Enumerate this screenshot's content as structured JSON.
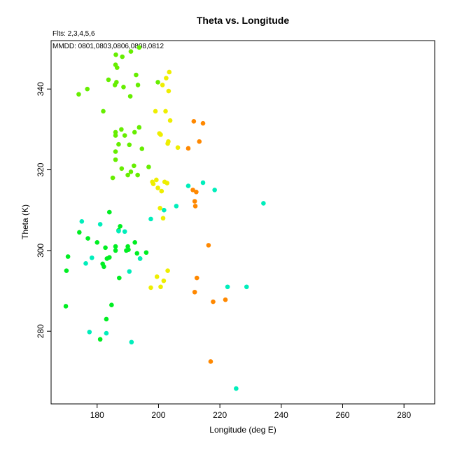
{
  "chart_data": {
    "type": "scatter",
    "title": "Theta vs. Longitude",
    "annotations": {
      "flts": "Flts: 2,3,4,5,6",
      "mmdd": "MMDD: 0801,0803,0806,0808,0812"
    },
    "xlabel": "Longitude (deg E)",
    "ylabel": "Theta (K)",
    "xlim": [
      165,
      290
    ],
    "ylim": [
      262,
      352
    ],
    "xticks": [
      180,
      200,
      220,
      240,
      260,
      280
    ],
    "yticks": [
      280,
      300,
      320,
      340
    ],
    "grid": false,
    "colors": {
      "green": "#00ee22",
      "lime": "#66ee00",
      "yellow": "#eeee00",
      "orange": "#ff8800",
      "cyan": "#00eebb"
    },
    "series": [
      {
        "color_key": "green",
        "points": [
          [
            169.8,
            286.2
          ],
          [
            170.0,
            295.0
          ],
          [
            170.5,
            298.5
          ],
          [
            174.2,
            304.5
          ],
          [
            177.0,
            303.0
          ],
          [
            180.0,
            302.0
          ],
          [
            181.0,
            278.0
          ],
          [
            181.8,
            296.7
          ],
          [
            182.2,
            296.0
          ],
          [
            182.7,
            300.7
          ],
          [
            183.0,
            283.0
          ],
          [
            183.2,
            298.0
          ],
          [
            184.0,
            298.3
          ],
          [
            184.0,
            309.5
          ],
          [
            184.7,
            286.5
          ],
          [
            186.0,
            300.0
          ],
          [
            186.0,
            301.0
          ],
          [
            187.0,
            305.0
          ],
          [
            187.2,
            293.2
          ],
          [
            187.5,
            306.0
          ],
          [
            189.5,
            300.0
          ],
          [
            190.0,
            301.0
          ],
          [
            190.2,
            300.2
          ],
          [
            192.3,
            302.0
          ],
          [
            193.0,
            299.3
          ],
          [
            194.0,
            298.0
          ],
          [
            196.0,
            299.5
          ]
        ]
      },
      {
        "color_key": "lime",
        "points": [
          [
            174.0,
            338.7
          ],
          [
            176.8,
            340.0
          ],
          [
            182.0,
            334.5
          ],
          [
            183.7,
            342.3
          ],
          [
            185.1,
            318.0
          ],
          [
            185.8,
            341.0
          ],
          [
            186.0,
            324.5
          ],
          [
            186.0,
            322.5
          ],
          [
            186.0,
            328.5
          ],
          [
            186.0,
            329.3
          ],
          [
            186.0,
            346.0
          ],
          [
            186.1,
            348.5
          ],
          [
            186.3,
            341.7
          ],
          [
            186.5,
            345.3
          ],
          [
            187.0,
            326.3
          ],
          [
            187.9,
            330.0
          ],
          [
            188.0,
            320.3
          ],
          [
            188.2,
            348.0
          ],
          [
            188.6,
            340.5
          ],
          [
            189.0,
            328.5
          ],
          [
            190.0,
            318.7
          ],
          [
            190.5,
            326.2
          ],
          [
            190.8,
            338.2
          ],
          [
            191.0,
            349.3
          ],
          [
            191.0,
            319.5
          ],
          [
            192.0,
            321.0
          ],
          [
            192.2,
            329.3
          ],
          [
            192.7,
            343.5
          ],
          [
            193.2,
            318.7
          ],
          [
            193.3,
            341.0
          ],
          [
            193.7,
            350.3
          ],
          [
            193.7,
            330.5
          ],
          [
            194.6,
            325.2
          ],
          [
            196.8,
            320.7
          ],
          [
            199.8,
            341.7
          ]
        ]
      },
      {
        "color_key": "yellow",
        "points": [
          [
            197.5,
            290.8
          ],
          [
            198.0,
            317.0
          ],
          [
            198.3,
            316.5
          ],
          [
            199.0,
            334.5
          ],
          [
            199.3,
            317.5
          ],
          [
            199.5,
            293.5
          ],
          [
            199.8,
            315.5
          ],
          [
            200.3,
            329.0
          ],
          [
            200.5,
            310.5
          ],
          [
            200.7,
            328.7
          ],
          [
            200.7,
            291.0
          ],
          [
            201.0,
            314.7
          ],
          [
            201.3,
            341.0
          ],
          [
            201.5,
            308.0
          ],
          [
            201.7,
            292.5
          ],
          [
            202.0,
            317.0
          ],
          [
            202.3,
            334.5
          ],
          [
            202.5,
            342.7
          ],
          [
            202.8,
            316.7
          ],
          [
            203.0,
            295.0
          ],
          [
            203.0,
            326.5
          ],
          [
            203.2,
            327.0
          ],
          [
            203.3,
            339.5
          ],
          [
            203.5,
            344.2
          ],
          [
            203.8,
            332.2
          ],
          [
            206.3,
            325.5
          ]
        ]
      },
      {
        "color_key": "orange",
        "points": [
          [
            209.7,
            325.3
          ],
          [
            211.2,
            315.0
          ],
          [
            211.5,
            332.0
          ],
          [
            211.8,
            312.2
          ],
          [
            211.8,
            289.7
          ],
          [
            212.0,
            311.0
          ],
          [
            212.3,
            314.5
          ],
          [
            212.5,
            293.2
          ],
          [
            213.3,
            327.0
          ],
          [
            214.5,
            331.5
          ],
          [
            216.3,
            301.3
          ],
          [
            217.0,
            272.5
          ],
          [
            217.8,
            287.3
          ],
          [
            221.8,
            287.8
          ]
        ]
      },
      {
        "color_key": "cyan",
        "points": [
          [
            175.0,
            307.2
          ],
          [
            176.3,
            296.8
          ],
          [
            177.5,
            279.8
          ],
          [
            178.3,
            298.2
          ],
          [
            181.0,
            306.5
          ],
          [
            183.0,
            279.5
          ],
          [
            187.0,
            304.8
          ],
          [
            189.0,
            304.7
          ],
          [
            190.5,
            294.8
          ],
          [
            191.2,
            277.3
          ],
          [
            194.0,
            298.0
          ],
          [
            197.5,
            307.8
          ],
          [
            201.8,
            310.0
          ],
          [
            205.8,
            311.0
          ],
          [
            209.7,
            316.0
          ],
          [
            214.5,
            316.8
          ],
          [
            218.3,
            315.0
          ],
          [
            222.5,
            291.0
          ],
          [
            225.3,
            265.8
          ],
          [
            228.7,
            291.0
          ],
          [
            234.2,
            311.7
          ]
        ]
      }
    ]
  }
}
